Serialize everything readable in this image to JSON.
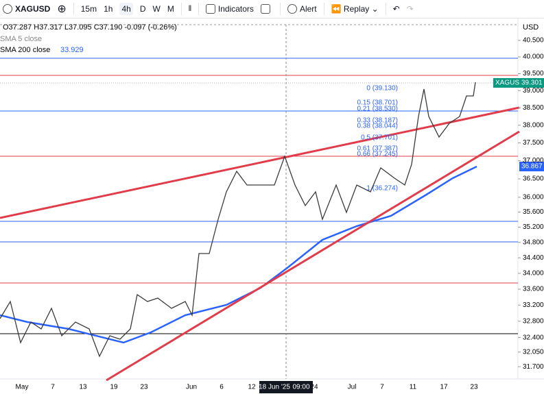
{
  "toolbar": {
    "symbol": "XAGUSD",
    "intervals": [
      "15m",
      "1h",
      "4h",
      "D",
      "W",
      "M"
    ],
    "indicators": "Indicators",
    "alert": "Alert",
    "replay": "Replay"
  },
  "legend": {
    "ohlc": "O37.287 H37.317 L37.095 C37.190 -0.097 (-0.26%)",
    "sma5": "SMA 5 close",
    "sma200": "SMA 200 close",
    "sma200_value": "33.929"
  },
  "price_axis": {
    "currency": "USD",
    "log": true,
    "ylim": [
      31.41,
      41.17
    ],
    "ticks": [
      {
        "value": 40.5,
        "label": "40.500"
      },
      {
        "value": 40,
        "label": "40.000"
      },
      {
        "value": 39.5,
        "label": "39.500"
      },
      {
        "value": 39,
        "label": "39.000"
      },
      {
        "value": 38.5,
        "label": "38.500"
      },
      {
        "value": 38,
        "label": "38.000"
      },
      {
        "value": 37.5,
        "label": "37.500"
      },
      {
        "value": 37,
        "label": "37.000"
      },
      {
        "value": 36.5,
        "label": "36.500"
      },
      {
        "value": 36,
        "label": "36.000"
      },
      {
        "value": 35.6,
        "label": "35.600"
      },
      {
        "value": 35.2,
        "label": "35.200"
      },
      {
        "value": 34.8,
        "label": "34.800"
      },
      {
        "value": 34.4,
        "label": "34.400"
      },
      {
        "value": 34,
        "label": "34.000"
      },
      {
        "value": 33.6,
        "label": "33.600"
      },
      {
        "value": 33.2,
        "label": "33.200"
      },
      {
        "value": 32.8,
        "label": "32.800"
      },
      {
        "value": 32.4,
        "label": "32.400"
      },
      {
        "value": 32.05,
        "label": "32.050"
      },
      {
        "value": 31.7,
        "label": "31.700"
      }
    ]
  },
  "price_tags": {
    "symbol": "XAGUSD",
    "last": "39.301",
    "sma": "36.867"
  },
  "fib_levels": [
    "0 (39.130)",
    "0.15 (38.701)",
    "0.21 (38.530)",
    "0.33 (38.187)",
    "0.38 (38.044)",
    "0.5 (37.701)",
    "0.61 (37.387)",
    "0.66 (37.245)",
    "1 (36.274)"
  ],
  "time_axis": [
    "May",
    "7",
    "13",
    "19",
    "23",
    "Jun",
    "6",
    "12",
    "18 Jun '25",
    "09:00",
    "24",
    "Jul",
    "7",
    "11",
    "17",
    "23"
  ]
}
